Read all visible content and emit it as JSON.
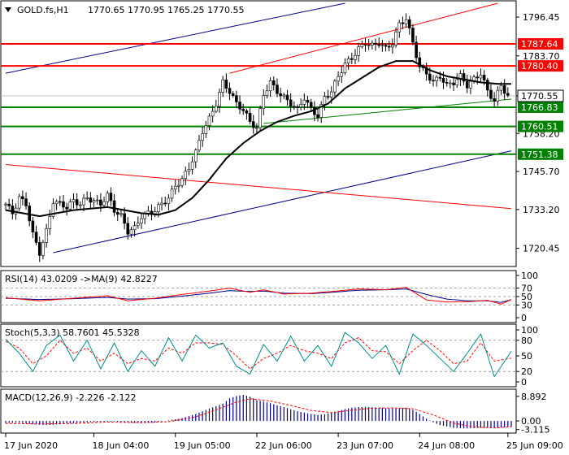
{
  "chart_data": {
    "type": "candlestick",
    "main": {
      "title": "GOLD.fs,H1",
      "ohlc_text": "1770.65 1770.95 1765.25 1770.55",
      "price_ticks": [
        1796.45,
        1783.7,
        1770.55,
        1758.2,
        1745.7,
        1733.2,
        1720.45
      ],
      "ylim": [
        1715,
        1801
      ],
      "current_price": "1770.55",
      "resistance_levels": [
        {
          "label": "1787.64",
          "value": 1787.64,
          "color": "#ff0000"
        },
        {
          "label": "1780.40",
          "value": 1780.4,
          "color": "#ff0000"
        }
      ],
      "support_levels": [
        {
          "label": "1766.83",
          "value": 1766.83,
          "color": "#008000"
        },
        {
          "label": "1760.51",
          "value": 1760.51,
          "color": "#008000"
        },
        {
          "label": "1751.38",
          "value": 1751.38,
          "color": "#008000"
        }
      ],
      "trend_lines": [
        {
          "color": "#00008b",
          "points": [
            [
              0,
              1778
            ],
            [
              100,
              1801
            ]
          ]
        },
        {
          "color": "#00008b",
          "points": [
            [
              14,
              1719
            ],
            [
              149,
              1752.5
            ]
          ]
        },
        {
          "color": "#ff0000",
          "points": [
            [
              0,
              1748
            ],
            [
              149,
              1733.5
            ]
          ]
        },
        {
          "color": "#ff0000",
          "points": [
            [
              66,
              1778
            ],
            [
              145,
              1801
            ]
          ]
        },
        {
          "color": "#008000",
          "points": [
            [
              76,
              1761.5
            ],
            [
              149,
              1769.5
            ]
          ]
        }
      ],
      "close_points": [
        [
          0,
          1735
        ],
        [
          2,
          1732
        ],
        [
          4,
          1737
        ],
        [
          6,
          1735
        ],
        [
          8,
          1725
        ],
        [
          10,
          1719
        ],
        [
          12,
          1726
        ],
        [
          14,
          1736
        ],
        [
          16,
          1735
        ],
        [
          18,
          1734
        ],
        [
          20,
          1736
        ],
        [
          22,
          1735
        ],
        [
          24,
          1737
        ],
        [
          26,
          1736
        ],
        [
          28,
          1735
        ],
        [
          30,
          1738
        ],
        [
          32,
          1733
        ],
        [
          34,
          1731
        ],
        [
          36,
          1726
        ],
        [
          38,
          1727
        ],
        [
          40,
          1731
        ],
        [
          42,
          1732
        ],
        [
          44,
          1733
        ],
        [
          46,
          1735
        ],
        [
          48,
          1737
        ],
        [
          50,
          1741
        ],
        [
          52,
          1743
        ],
        [
          54,
          1747
        ],
        [
          56,
          1752
        ],
        [
          58,
          1759
        ],
        [
          60,
          1763
        ],
        [
          62,
          1768
        ],
        [
          64,
          1775
        ],
        [
          66,
          1772
        ],
        [
          68,
          1768
        ],
        [
          70,
          1766
        ],
        [
          72,
          1762
        ],
        [
          74,
          1760
        ],
        [
          76,
          1771
        ],
        [
          78,
          1775
        ],
        [
          80,
          1772
        ],
        [
          82,
          1770
        ],
        [
          84,
          1768
        ],
        [
          86,
          1766
        ],
        [
          88,
          1770
        ],
        [
          90,
          1766
        ],
        [
          92,
          1764
        ],
        [
          94,
          1770
        ],
        [
          96,
          1772
        ],
        [
          98,
          1777
        ],
        [
          100,
          1781
        ],
        [
          102,
          1783
        ],
        [
          104,
          1786
        ],
        [
          106,
          1788
        ],
        [
          108,
          1787
        ],
        [
          110,
          1788
        ],
        [
          112,
          1786
        ],
        [
          114,
          1788
        ],
        [
          116,
          1794
        ],
        [
          118,
          1796
        ],
        [
          120,
          1788
        ],
        [
          122,
          1780
        ],
        [
          124,
          1778
        ],
        [
          126,
          1775
        ],
        [
          128,
          1777
        ],
        [
          130,
          1774
        ],
        [
          132,
          1775
        ],
        [
          134,
          1777
        ],
        [
          136,
          1774
        ],
        [
          138,
          1776
        ],
        [
          140,
          1778
        ],
        [
          142,
          1772
        ],
        [
          144,
          1769
        ],
        [
          146,
          1774
        ],
        [
          148,
          1770.5
        ]
      ],
      "ma_points": [
        [
          0,
          1733
        ],
        [
          10,
          1731
        ],
        [
          20,
          1733
        ],
        [
          30,
          1734
        ],
        [
          40,
          1732
        ],
        [
          45,
          1731.5
        ],
        [
          50,
          1733
        ],
        [
          55,
          1737
        ],
        [
          60,
          1743
        ],
        [
          65,
          1750
        ],
        [
          70,
          1755
        ],
        [
          75,
          1759
        ],
        [
          80,
          1762
        ],
        [
          85,
          1764
        ],
        [
          90,
          1765.5
        ],
        [
          95,
          1768
        ],
        [
          100,
          1773
        ],
        [
          105,
          1776.5
        ],
        [
          110,
          1780
        ],
        [
          115,
          1782
        ],
        [
          120,
          1782
        ],
        [
          125,
          1779
        ],
        [
          130,
          1777
        ],
        [
          135,
          1776
        ],
        [
          140,
          1775
        ],
        [
          145,
          1774.5
        ],
        [
          149,
          1774.5
        ]
      ],
      "x_labels": [
        "17 Jun 2020",
        "18 Jun 04:00",
        "19 Jun 05:00",
        "22 Jun 06:00",
        "23 Jun 07:00",
        "24 Jun 08:00",
        "25 Jun 09:00"
      ],
      "x_label_bars": [
        0,
        26,
        50,
        74,
        98,
        122,
        148
      ]
    },
    "rsi": {
      "label": "RSI(14) 43.0209 ->MA(9) 42.8227",
      "ticks": [
        "100",
        "70",
        "50",
        "30",
        "0"
      ],
      "tick_values": [
        100,
        70,
        50,
        30,
        0
      ],
      "levels": [
        70,
        50,
        30
      ],
      "rsi_points": [
        [
          0,
          47
        ],
        [
          10,
          40
        ],
        [
          20,
          46
        ],
        [
          30,
          52
        ],
        [
          36,
          40
        ],
        [
          44,
          46
        ],
        [
          52,
          55
        ],
        [
          60,
          63
        ],
        [
          66,
          70
        ],
        [
          72,
          60
        ],
        [
          76,
          66
        ],
        [
          82,
          56
        ],
        [
          90,
          58
        ],
        [
          96,
          62
        ],
        [
          104,
          68
        ],
        [
          112,
          66
        ],
        [
          118,
          72
        ],
        [
          124,
          42
        ],
        [
          130,
          37
        ],
        [
          136,
          38
        ],
        [
          142,
          41
        ],
        [
          146,
          32
        ],
        [
          149,
          43
        ]
      ],
      "ma_points": [
        [
          0,
          46
        ],
        [
          10,
          43
        ],
        [
          20,
          45
        ],
        [
          30,
          48
        ],
        [
          36,
          44
        ],
        [
          44,
          45
        ],
        [
          52,
          51
        ],
        [
          60,
          58
        ],
        [
          66,
          64
        ],
        [
          72,
          62
        ],
        [
          76,
          63
        ],
        [
          82,
          58
        ],
        [
          90,
          57
        ],
        [
          96,
          60
        ],
        [
          104,
          65
        ],
        [
          112,
          66
        ],
        [
          118,
          68
        ],
        [
          124,
          55
        ],
        [
          130,
          44
        ],
        [
          136,
          40
        ],
        [
          142,
          40
        ],
        [
          146,
          36
        ],
        [
          149,
          42.8
        ]
      ]
    },
    "stoch": {
      "label": "Stoch(5,3,3) 58.7601 45.5328",
      "ticks": [
        "100",
        "80",
        "50",
        "20",
        "0"
      ],
      "tick_values": [
        100,
        80,
        50,
        20,
        0
      ],
      "levels": [
        80,
        20
      ],
      "k_points": [
        [
          0,
          82
        ],
        [
          4,
          55
        ],
        [
          8,
          20
        ],
        [
          12,
          70
        ],
        [
          16,
          90
        ],
        [
          20,
          40
        ],
        [
          24,
          80
        ],
        [
          28,
          25
        ],
        [
          32,
          75
        ],
        [
          36,
          20
        ],
        [
          40,
          60
        ],
        [
          44,
          30
        ],
        [
          48,
          85
        ],
        [
          52,
          40
        ],
        [
          56,
          90
        ],
        [
          60,
          65
        ],
        [
          64,
          75
        ],
        [
          68,
          30
        ],
        [
          72,
          15
        ],
        [
          76,
          72
        ],
        [
          80,
          40
        ],
        [
          84,
          88
        ],
        [
          88,
          40
        ],
        [
          92,
          70
        ],
        [
          96,
          30
        ],
        [
          100,
          95
        ],
        [
          104,
          75
        ],
        [
          108,
          45
        ],
        [
          112,
          70
        ],
        [
          116,
          15
        ],
        [
          120,
          92
        ],
        [
          124,
          70
        ],
        [
          128,
          45
        ],
        [
          132,
          20
        ],
        [
          136,
          55
        ],
        [
          140,
          92
        ],
        [
          144,
          10
        ],
        [
          149,
          58.8
        ]
      ],
      "d_points": [
        [
          0,
          78
        ],
        [
          4,
          65
        ],
        [
          8,
          35
        ],
        [
          12,
          50
        ],
        [
          16,
          80
        ],
        [
          20,
          55
        ],
        [
          24,
          65
        ],
        [
          28,
          40
        ],
        [
          32,
          55
        ],
        [
          36,
          35
        ],
        [
          40,
          45
        ],
        [
          44,
          40
        ],
        [
          48,
          65
        ],
        [
          52,
          55
        ],
        [
          56,
          75
        ],
        [
          60,
          75
        ],
        [
          64,
          72
        ],
        [
          68,
          50
        ],
        [
          72,
          25
        ],
        [
          76,
          45
        ],
        [
          80,
          55
        ],
        [
          84,
          70
        ],
        [
          88,
          60
        ],
        [
          92,
          55
        ],
        [
          96,
          45
        ],
        [
          100,
          75
        ],
        [
          104,
          85
        ],
        [
          108,
          60
        ],
        [
          112,
          58
        ],
        [
          116,
          35
        ],
        [
          120,
          60
        ],
        [
          124,
          80
        ],
        [
          128,
          60
        ],
        [
          132,
          35
        ],
        [
          136,
          40
        ],
        [
          140,
          75
        ],
        [
          144,
          40
        ],
        [
          149,
          45.5
        ]
      ]
    },
    "macd": {
      "label": "MACD(12,26,9) -2.226 -2.122",
      "ticks": [
        "8.892",
        "0.00",
        "-3.115"
      ],
      "tick_values": [
        8.892,
        0,
        -3.115
      ],
      "ylim": [
        -3.5,
        10
      ],
      "histogram": [
        [
          0,
          -0.8
        ],
        [
          4,
          -0.6
        ],
        [
          8,
          -1.2
        ],
        [
          12,
          -1.5
        ],
        [
          16,
          -1.2
        ],
        [
          20,
          -0.8
        ],
        [
          24,
          -0.5
        ],
        [
          28,
          -0.3
        ],
        [
          32,
          -0.2
        ],
        [
          36,
          -0.6
        ],
        [
          40,
          -0.8
        ],
        [
          44,
          -0.6
        ],
        [
          48,
          0.2
        ],
        [
          52,
          1.0
        ],
        [
          56,
          2.5
        ],
        [
          60,
          4.5
        ],
        [
          64,
          6.2
        ],
        [
          66,
          8.2
        ],
        [
          68,
          9.0
        ],
        [
          70,
          9.4
        ],
        [
          72,
          8.8
        ],
        [
          74,
          7.5
        ],
        [
          76,
          7.0
        ],
        [
          78,
          6.4
        ],
        [
          80,
          5.6
        ],
        [
          82,
          5.0
        ],
        [
          84,
          4.2
        ],
        [
          86,
          3.5
        ],
        [
          88,
          3.0
        ],
        [
          90,
          2.5
        ],
        [
          92,
          2.2
        ],
        [
          94,
          2.4
        ],
        [
          96,
          3.0
        ],
        [
          98,
          3.6
        ],
        [
          100,
          4.3
        ],
        [
          102,
          4.8
        ],
        [
          104,
          5.0
        ],
        [
          106,
          5.1
        ],
        [
          108,
          5.0
        ],
        [
          110,
          4.8
        ],
        [
          112,
          4.6
        ],
        [
          114,
          4.5
        ],
        [
          116,
          4.6
        ],
        [
          118,
          4.8
        ],
        [
          120,
          4.0
        ],
        [
          122,
          2.5
        ],
        [
          124,
          0.8
        ],
        [
          126,
          -0.5
        ],
        [
          128,
          -1.5
        ],
        [
          130,
          -2.0
        ],
        [
          132,
          -2.5
        ],
        [
          134,
          -2.6
        ],
        [
          136,
          -2.7
        ],
        [
          138,
          -2.6
        ],
        [
          140,
          -2.5
        ],
        [
          142,
          -2.5
        ],
        [
          144,
          -2.6
        ],
        [
          146,
          -2.4
        ],
        [
          148,
          -2.2
        ]
      ],
      "signal_points": [
        [
          0,
          -0.9
        ],
        [
          10,
          -1.1
        ],
        [
          20,
          -0.9
        ],
        [
          30,
          -0.4
        ],
        [
          40,
          -0.6
        ],
        [
          48,
          -0.3
        ],
        [
          56,
          1.5
        ],
        [
          62,
          4.0
        ],
        [
          68,
          6.8
        ],
        [
          72,
          8.0
        ],
        [
          78,
          7.2
        ],
        [
          84,
          5.6
        ],
        [
          90,
          3.8
        ],
        [
          96,
          3.0
        ],
        [
          102,
          3.9
        ],
        [
          108,
          4.6
        ],
        [
          114,
          4.7
        ],
        [
          120,
          4.4
        ],
        [
          126,
          2.2
        ],
        [
          132,
          -0.8
        ],
        [
          138,
          -2.2
        ],
        [
          144,
          -2.5
        ],
        [
          149,
          -2.1
        ]
      ]
    },
    "colors": {
      "up_candle": "#000000",
      "down_candle": "#000000",
      "candle_fill_up": "#ffffff",
      "ma": "#000000",
      "rsi": "#ff0000",
      "rsi_ma": "#00008b",
      "stoch_k": "#008b8b",
      "stoch_d": "#ff0000",
      "macd_hist": "#000080",
      "macd_signal": "#ff0000"
    }
  }
}
